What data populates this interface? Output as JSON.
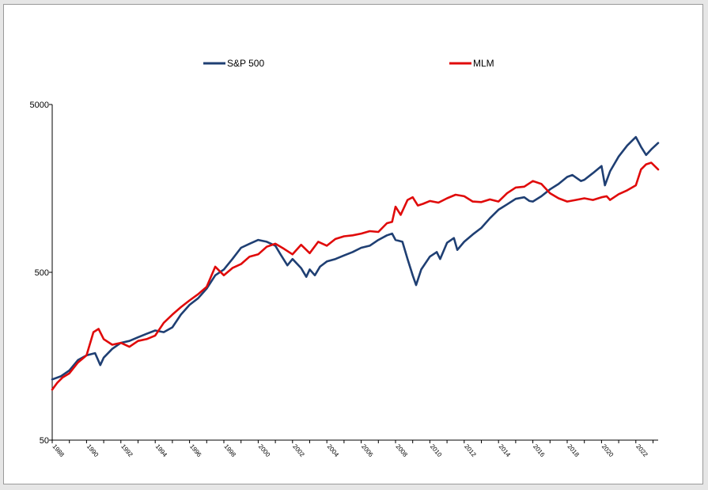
{
  "chart_data": {
    "type": "line",
    "y_scale": "log",
    "ylim": [
      50,
      5000
    ],
    "y_ticks": [
      "5000",
      "500",
      "50"
    ],
    "y_tick_values": [
      5000,
      500,
      50
    ],
    "xlim": [
      1988,
      2023.3
    ],
    "x_ticks": [
      "1988",
      "1990",
      "1992",
      "1994",
      "1996",
      "1998",
      "2000",
      "2002",
      "2004",
      "2006",
      "2008",
      "2010",
      "2012",
      "2014",
      "2016",
      "2018",
      "2020",
      "2022"
    ],
    "legend_position": "top",
    "grid": false,
    "series": [
      {
        "name": "S&P 500",
        "color": "#1f3f73",
        "points": [
          [
            1988.0,
            115
          ],
          [
            1988.5,
            120
          ],
          [
            1989.0,
            130
          ],
          [
            1989.5,
            150
          ],
          [
            1990.0,
            160
          ],
          [
            1990.5,
            165
          ],
          [
            1990.8,
            140
          ],
          [
            1991.0,
            155
          ],
          [
            1991.5,
            175
          ],
          [
            1992.0,
            190
          ],
          [
            1992.5,
            195
          ],
          [
            1993.0,
            205
          ],
          [
            1993.5,
            215
          ],
          [
            1994.0,
            225
          ],
          [
            1994.5,
            220
          ],
          [
            1995.0,
            235
          ],
          [
            1995.5,
            280
          ],
          [
            1996.0,
            320
          ],
          [
            1996.5,
            350
          ],
          [
            1997.0,
            400
          ],
          [
            1997.5,
            480
          ],
          [
            1998.0,
            520
          ],
          [
            1998.5,
            600
          ],
          [
            1999.0,
            700
          ],
          [
            1999.5,
            740
          ],
          [
            2000.0,
            780
          ],
          [
            2000.5,
            760
          ],
          [
            2001.0,
            720
          ],
          [
            2001.3,
            640
          ],
          [
            2001.7,
            550
          ],
          [
            2002.0,
            600
          ],
          [
            2002.5,
            530
          ],
          [
            2002.8,
            470
          ],
          [
            2003.0,
            520
          ],
          [
            2003.3,
            480
          ],
          [
            2003.6,
            540
          ],
          [
            2004.0,
            580
          ],
          [
            2004.5,
            600
          ],
          [
            2005.0,
            630
          ],
          [
            2005.5,
            660
          ],
          [
            2006.0,
            700
          ],
          [
            2006.5,
            720
          ],
          [
            2007.0,
            780
          ],
          [
            2007.5,
            830
          ],
          [
            2007.8,
            850
          ],
          [
            2008.0,
            780
          ],
          [
            2008.4,
            760
          ],
          [
            2008.7,
            600
          ],
          [
            2009.0,
            480
          ],
          [
            2009.2,
            420
          ],
          [
            2009.5,
            520
          ],
          [
            2010.0,
            620
          ],
          [
            2010.4,
            660
          ],
          [
            2010.6,
            600
          ],
          [
            2011.0,
            750
          ],
          [
            2011.4,
            800
          ],
          [
            2011.6,
            680
          ],
          [
            2012.0,
            760
          ],
          [
            2012.5,
            840
          ],
          [
            2013.0,
            920
          ],
          [
            2013.5,
            1050
          ],
          [
            2014.0,
            1180
          ],
          [
            2014.5,
            1270
          ],
          [
            2015.0,
            1370
          ],
          [
            2015.5,
            1400
          ],
          [
            2015.8,
            1330
          ],
          [
            2016.0,
            1320
          ],
          [
            2016.5,
            1420
          ],
          [
            2017.0,
            1560
          ],
          [
            2017.5,
            1680
          ],
          [
            2018.0,
            1850
          ],
          [
            2018.3,
            1900
          ],
          [
            2018.8,
            1750
          ],
          [
            2019.0,
            1780
          ],
          [
            2019.5,
            1950
          ],
          [
            2020.0,
            2150
          ],
          [
            2020.2,
            1650
          ],
          [
            2020.5,
            2000
          ],
          [
            2021.0,
            2450
          ],
          [
            2021.5,
            2850
          ],
          [
            2022.0,
            3200
          ],
          [
            2022.3,
            2800
          ],
          [
            2022.6,
            2500
          ],
          [
            2022.9,
            2700
          ],
          [
            2023.3,
            2950
          ]
        ]
      },
      {
        "name": "MLM",
        "color": "#e00a0a",
        "points": [
          [
            1988.0,
            100
          ],
          [
            1988.3,
            110
          ],
          [
            1988.6,
            118
          ],
          [
            1989.0,
            125
          ],
          [
            1989.5,
            145
          ],
          [
            1990.0,
            160
          ],
          [
            1990.4,
            220
          ],
          [
            1990.7,
            230
          ],
          [
            1991.0,
            200
          ],
          [
            1991.5,
            185
          ],
          [
            1992.0,
            190
          ],
          [
            1992.5,
            180
          ],
          [
            1993.0,
            195
          ],
          [
            1993.5,
            200
          ],
          [
            1994.0,
            210
          ],
          [
            1994.5,
            250
          ],
          [
            1995.0,
            280
          ],
          [
            1995.5,
            310
          ],
          [
            1996.0,
            340
          ],
          [
            1996.5,
            370
          ],
          [
            1997.0,
            410
          ],
          [
            1997.5,
            540
          ],
          [
            1998.0,
            480
          ],
          [
            1998.5,
            530
          ],
          [
            1999.0,
            560
          ],
          [
            1999.5,
            620
          ],
          [
            2000.0,
            640
          ],
          [
            2000.5,
            710
          ],
          [
            2001.0,
            740
          ],
          [
            2001.5,
            690
          ],
          [
            2002.0,
            640
          ],
          [
            2002.5,
            730
          ],
          [
            2003.0,
            650
          ],
          [
            2003.5,
            760
          ],
          [
            2004.0,
            720
          ],
          [
            2004.5,
            790
          ],
          [
            2005.0,
            820
          ],
          [
            2005.5,
            830
          ],
          [
            2006.0,
            850
          ],
          [
            2006.5,
            880
          ],
          [
            2007.0,
            870
          ],
          [
            2007.5,
            980
          ],
          [
            2007.8,
            1000
          ],
          [
            2008.0,
            1230
          ],
          [
            2008.3,
            1100
          ],
          [
            2008.7,
            1350
          ],
          [
            2009.0,
            1400
          ],
          [
            2009.3,
            1250
          ],
          [
            2009.6,
            1280
          ],
          [
            2010.0,
            1330
          ],
          [
            2010.5,
            1300
          ],
          [
            2011.0,
            1380
          ],
          [
            2011.5,
            1450
          ],
          [
            2012.0,
            1420
          ],
          [
            2012.5,
            1320
          ],
          [
            2013.0,
            1310
          ],
          [
            2013.5,
            1360
          ],
          [
            2014.0,
            1320
          ],
          [
            2014.5,
            1480
          ],
          [
            2015.0,
            1600
          ],
          [
            2015.5,
            1620
          ],
          [
            2016.0,
            1750
          ],
          [
            2016.5,
            1680
          ],
          [
            2017.0,
            1480
          ],
          [
            2017.5,
            1380
          ],
          [
            2018.0,
            1320
          ],
          [
            2018.5,
            1350
          ],
          [
            2019.0,
            1380
          ],
          [
            2019.5,
            1350
          ],
          [
            2020.0,
            1400
          ],
          [
            2020.3,
            1420
          ],
          [
            2020.5,
            1350
          ],
          [
            2021.0,
            1460
          ],
          [
            2021.5,
            1540
          ],
          [
            2022.0,
            1650
          ],
          [
            2022.3,
            2050
          ],
          [
            2022.6,
            2200
          ],
          [
            2022.9,
            2250
          ],
          [
            2023.3,
            2050
          ]
        ]
      }
    ]
  }
}
